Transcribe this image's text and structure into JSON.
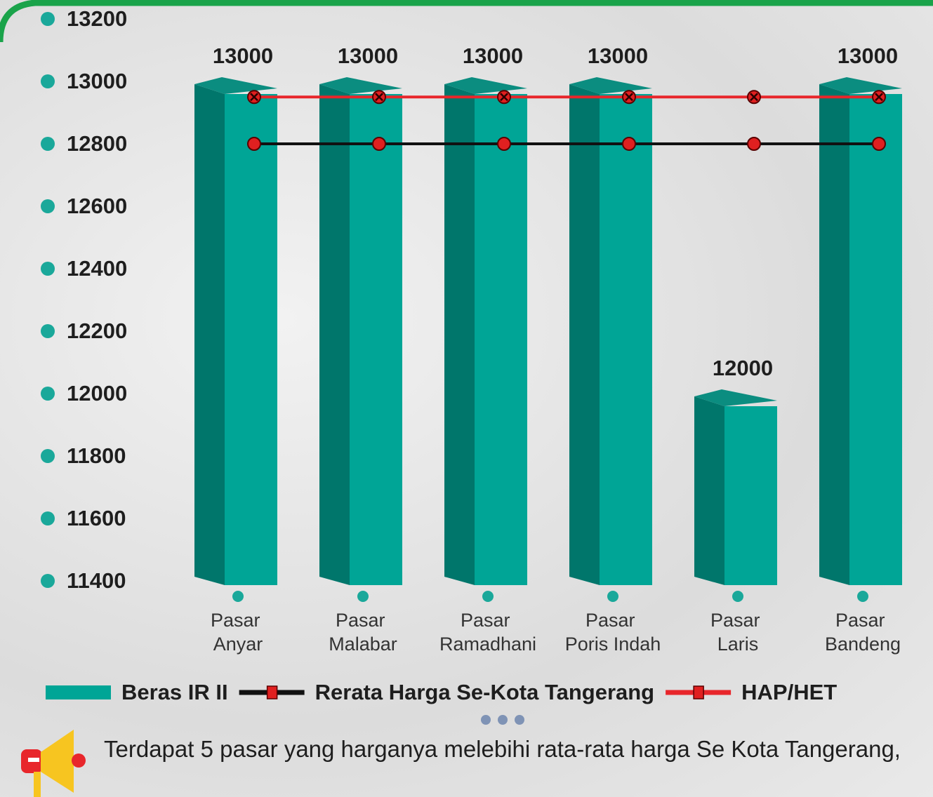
{
  "chart_data": {
    "type": "bar_line",
    "categories": [
      "Pasar Anyar",
      "Pasar Malabar",
      "Pasar Ramadhani",
      "Pasar Poris Indah",
      "Pasar Laris",
      "Pasar Bandeng"
    ],
    "series": [
      {
        "name": "Beras IR II",
        "type": "bar",
        "color": "#00a596",
        "values": [
          13000,
          13000,
          13000,
          13000,
          12000,
          13000
        ]
      },
      {
        "name": "Rerata Harga Se-Kota Tangerang",
        "type": "line",
        "color": "#111111",
        "marker_color": "#e02020",
        "marker": "circle",
        "values": [
          12800,
          12800,
          12800,
          12800,
          12800,
          12800
        ]
      },
      {
        "name": "HAP/HET",
        "type": "line",
        "color": "#e8262b",
        "marker_color": "#e02020",
        "marker": "x",
        "values": [
          12950,
          12950,
          12950,
          12950,
          12950,
          12950
        ]
      }
    ],
    "ylim": [
      11400,
      13200
    ],
    "yticks": [
      11400,
      11600,
      11800,
      12000,
      12200,
      12400,
      12600,
      12800,
      13000,
      13200
    ],
    "grid": false,
    "legend": "bottom",
    "note": "Terdapat 5 pasar yang harganya melebihi rata-rata harga Se Kota Tangerang,"
  }
}
